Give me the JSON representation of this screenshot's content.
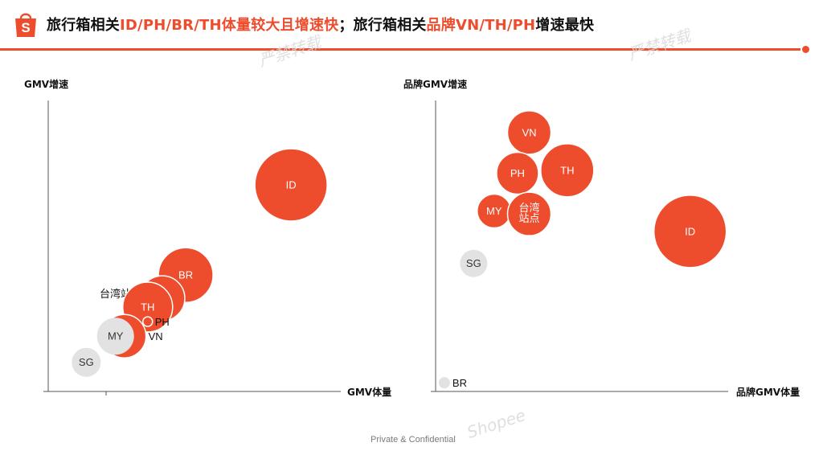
{
  "header": {
    "title_part1": "旅行箱相关",
    "title_hl1": "ID/PH/BR/TH体量较大且增速快",
    "title_part2": "；旅行箱相关",
    "title_hl2": "品牌VN/TH/PH",
    "title_part3": "增速最快",
    "logo_letter": "S"
  },
  "watermarks": [
    "严禁转载",
    "严禁转载",
    "Shopee"
  ],
  "footer": {
    "text": "Private & Confidential"
  },
  "colors": {
    "accent": "#ee4d2d",
    "bubble": "#ee4d2d",
    "bubble_grey": "#e2e2e2",
    "text_grey": "#333333"
  },
  "chart_data": [
    {
      "type": "bubble",
      "title": "",
      "xlabel": "GMV体量",
      "ylabel": "GMV增速",
      "xlim": [
        0,
        100
      ],
      "ylim": [
        0,
        100
      ],
      "points": [
        {
          "name": "ID",
          "x": 83,
          "y": 71,
          "r": 45,
          "color": "#ee4d2d",
          "text_color": "#ffffff",
          "label_pos": "center"
        },
        {
          "name": "BR",
          "x": 47,
          "y": 40,
          "r": 34,
          "color": "#ee4d2d",
          "text_color": "#ffffff",
          "label_pos": "center"
        },
        {
          "name": "台湾站点",
          "x": 39,
          "y": 32,
          "r": 28,
          "color": "#ee4d2d",
          "text_color": "#111111",
          "label_pos": "left"
        },
        {
          "name": "TH",
          "x": 34,
          "y": 29,
          "r": 31,
          "color": "#ee4d2d",
          "text_color": "#ffffff",
          "label_pos": "center"
        },
        {
          "name": "PH",
          "x": 34,
          "y": 24,
          "r": 6,
          "color": "#ee4d2d",
          "text_color": "#111111",
          "label_pos": "right"
        },
        {
          "name": "VN",
          "x": 26,
          "y": 19,
          "r": 27,
          "color": "#ee4d2d",
          "text_color": "#111111",
          "label_pos": "right"
        },
        {
          "name": "MY",
          "x": 23,
          "y": 19,
          "r": 23,
          "color": "#e2e2e2",
          "text_color": "#333333",
          "label_pos": "center"
        },
        {
          "name": "SG",
          "x": 13,
          "y": 10,
          "r": 18,
          "color": "#e2e2e2",
          "text_color": "#333333",
          "label_pos": "center"
        }
      ]
    },
    {
      "type": "bubble",
      "title": "",
      "xlabel": "品牌GMV体量",
      "ylabel": "品牌GMV增速",
      "xlim": [
        0,
        100
      ],
      "ylim": [
        0,
        100
      ],
      "points": [
        {
          "name": "VN",
          "x": 32,
          "y": 89,
          "r": 27,
          "color": "#ee4d2d",
          "text_color": "#ffffff",
          "label_pos": "center"
        },
        {
          "name": "TH",
          "x": 45,
          "y": 76,
          "r": 33,
          "color": "#ee4d2d",
          "text_color": "#ffffff",
          "label_pos": "center"
        },
        {
          "name": "PH",
          "x": 28,
          "y": 75,
          "r": 26,
          "color": "#ee4d2d",
          "text_color": "#ffffff",
          "label_pos": "center"
        },
        {
          "name": "MY",
          "x": 20,
          "y": 62,
          "r": 21,
          "color": "#ee4d2d",
          "text_color": "#ffffff",
          "label_pos": "center"
        },
        {
          "name": "台湾站点",
          "x": 32,
          "y": 61,
          "r": 27,
          "color": "#ee4d2d",
          "text_color": "#ffffff",
          "label_pos": "center_small"
        },
        {
          "name": "ID",
          "x": 87,
          "y": 55,
          "r": 45,
          "color": "#ee4d2d",
          "text_color": "#ffffff",
          "label_pos": "center"
        },
        {
          "name": "SG",
          "x": 13,
          "y": 44,
          "r": 17,
          "color": "#e2e2e2",
          "text_color": "#333333",
          "label_pos": "center"
        },
        {
          "name": "BR",
          "x": 3,
          "y": 3,
          "r": 7,
          "color": "#e2e2e2",
          "text_color": "#333333",
          "label_pos": "right"
        }
      ]
    }
  ]
}
